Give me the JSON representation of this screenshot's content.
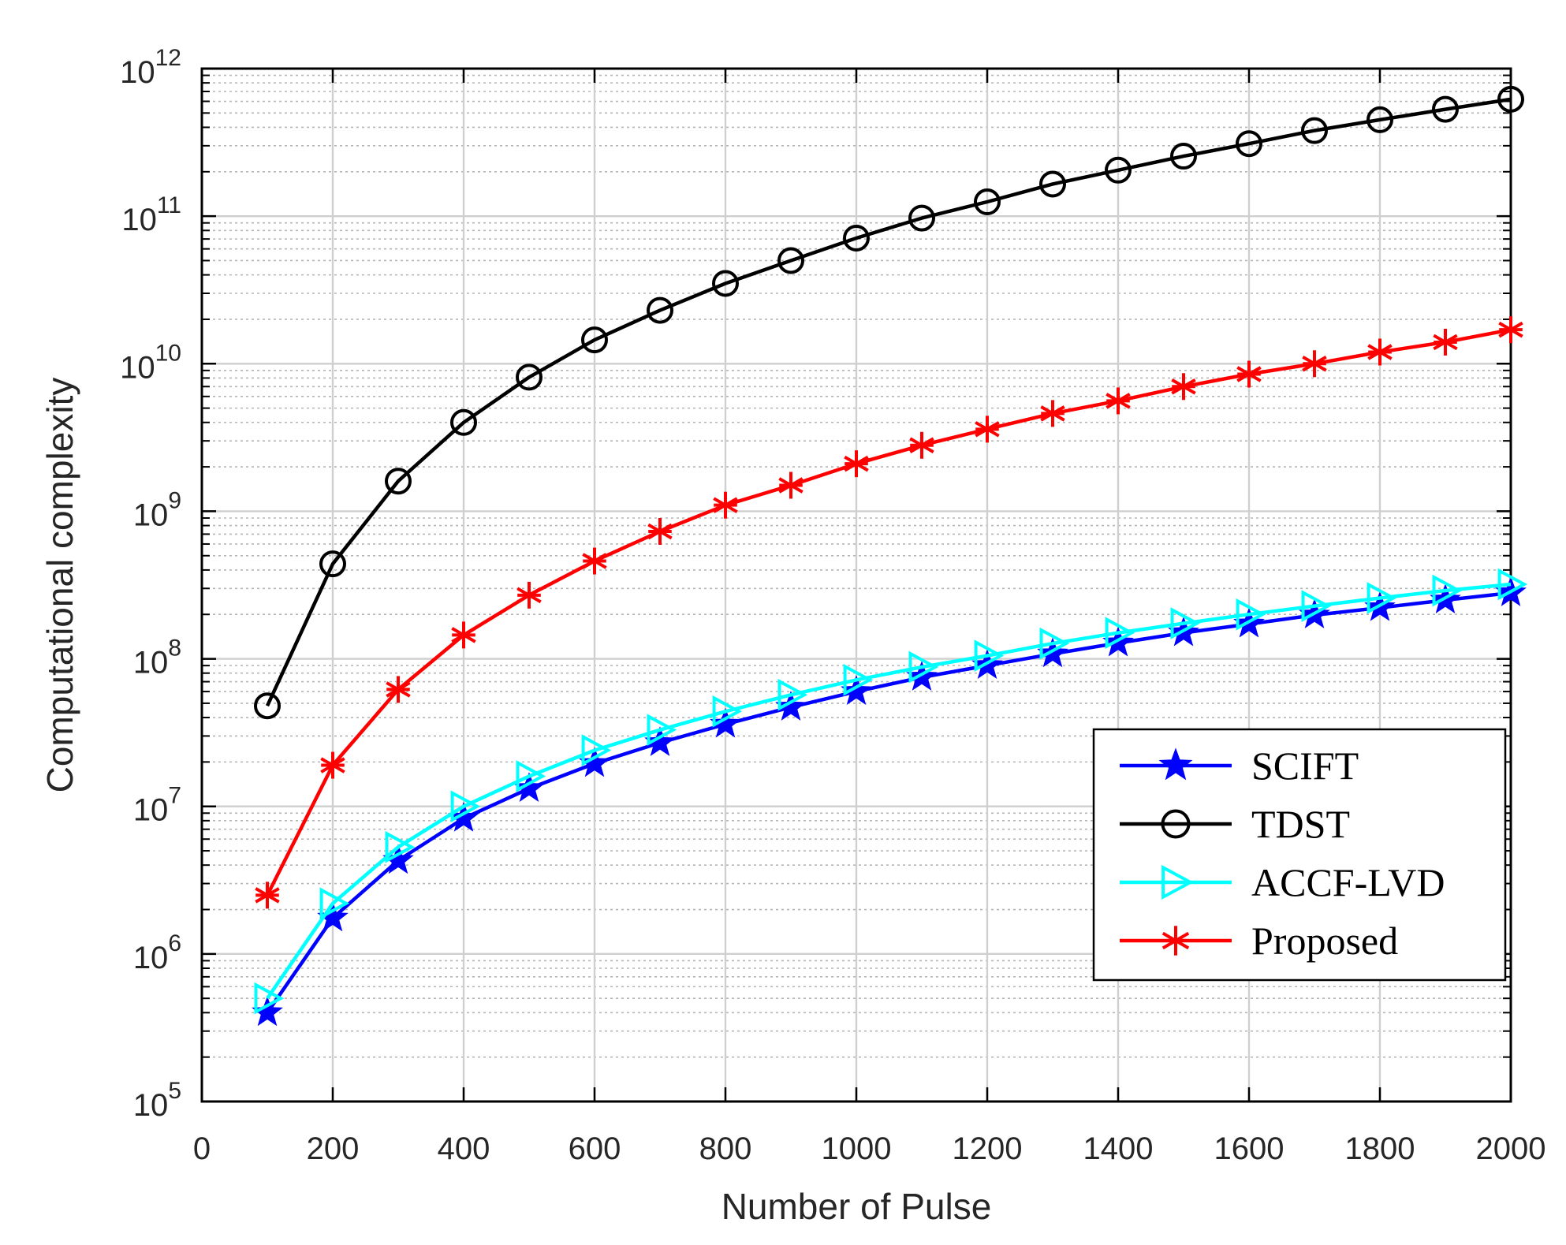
{
  "chart_data": {
    "type": "line",
    "yscale": "log",
    "title": "",
    "xlabel": "Number of Pulse",
    "ylabel": "Computational complexity",
    "xlim": [
      0,
      2000
    ],
    "ylim_exp": [
      5,
      12
    ],
    "xticks": [
      0,
      200,
      400,
      600,
      800,
      1000,
      1200,
      1400,
      1600,
      1800,
      2000
    ],
    "ytick_base": "10",
    "yticks_exp": [
      5,
      6,
      7,
      8,
      9,
      10,
      11,
      12
    ],
    "grid": true,
    "legend_position": "bottom-right",
    "x": [
      100,
      200,
      300,
      400,
      500,
      600,
      700,
      800,
      900,
      1000,
      1100,
      1200,
      1300,
      1400,
      1500,
      1600,
      1700,
      1800,
      1900,
      2000
    ],
    "series": [
      {
        "name": "SCIFT",
        "color": "#0000ff",
        "marker": "star",
        "values": [
          400000.0,
          1750000.0,
          4300000.0,
          8300000.0,
          13200000.0,
          19500000.0,
          27000000.0,
          36000000.0,
          47000000.0,
          60000000.0,
          75000000.0,
          90000000.0,
          108000000.0,
          128000000.0,
          150000000.0,
          172000000.0,
          198000000.0,
          222000000.0,
          250000000.0,
          280000000.0
        ]
      },
      {
        "name": "TDST",
        "color": "#000000",
        "marker": "circle",
        "values": [
          48000000.0,
          440000000.0,
          1600000000.0,
          4000000000.0,
          8100000000.0,
          14500000000.0,
          23000000000.0,
          35000000000.0,
          50000000000.0,
          71000000000.0,
          97000000000.0,
          125000000000.0,
          165000000000.0,
          205000000000.0,
          255000000000.0,
          310000000000.0,
          380000000000.0,
          450000000000.0,
          530000000000.0,
          620000000000.0
        ]
      },
      {
        "name": "ACCF-LVD",
        "color": "#00ffff",
        "marker": "triangle-right",
        "values": [
          500000.0,
          2200000.0,
          5300000.0,
          10000000.0,
          16000000.0,
          24000000.0,
          33000000.0,
          44000000.0,
          57000000.0,
          72000000.0,
          88000000.0,
          105000000.0,
          127000000.0,
          150000000.0,
          174000000.0,
          200000000.0,
          228000000.0,
          258000000.0,
          290000000.0,
          320000000.0
        ]
      },
      {
        "name": "Proposed",
        "color": "#ff0000",
        "marker": "asterisk",
        "values": [
          2500000.0,
          19000000.0,
          62000000.0,
          145000000.0,
          270000000.0,
          460000000.0,
          730000000.0,
          1100000000.0,
          1500000000.0,
          2100000000.0,
          2800000000.0,
          3600000000.0,
          4600000000.0,
          5600000000.0,
          7000000000.0,
          8500000000.0,
          10000000000.0,
          12000000000.0,
          14000000000.0,
          17000000000.0
        ]
      }
    ]
  }
}
